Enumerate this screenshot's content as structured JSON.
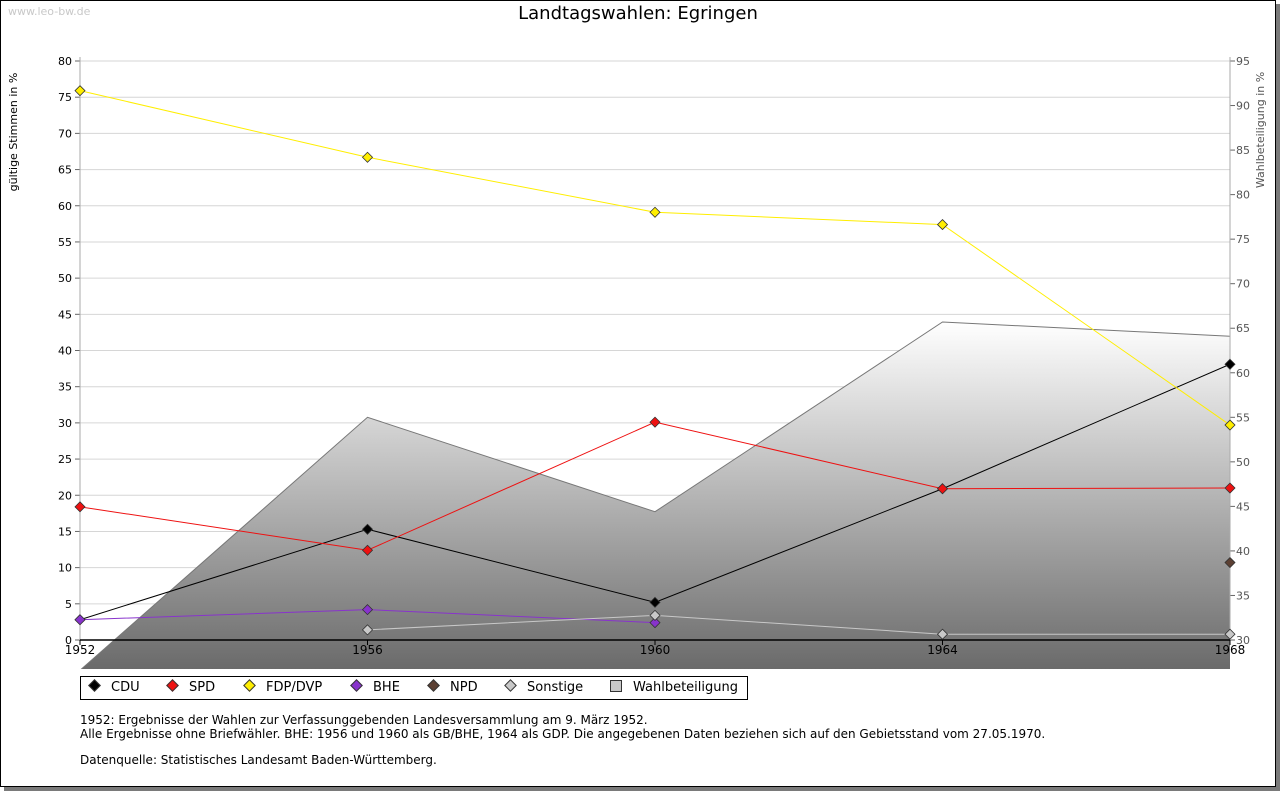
{
  "watermark": "www.leo-bw.de",
  "chart_data": {
    "type": "line",
    "title": "Landtagswahlen: Egringen",
    "ylabel": "gültige Stimmen in %",
    "y2label": "Wahlbeteiligung in %",
    "ylim": [
      0,
      80
    ],
    "y2lim": [
      30,
      95
    ],
    "yticks": [
      "0",
      "5",
      "10",
      "15",
      "20",
      "25",
      "30",
      "35",
      "40",
      "45",
      "50",
      "55",
      "60",
      "65",
      "70",
      "75",
      "80"
    ],
    "y2ticks": [
      "30",
      "35",
      "40",
      "45",
      "50",
      "55",
      "60",
      "65",
      "70",
      "75",
      "80",
      "85",
      "90",
      "95"
    ],
    "categories": [
      "1952",
      "1956",
      "1960",
      "1964",
      "1968"
    ],
    "series": [
      {
        "name": "CDU",
        "color": "#000000",
        "values": [
          2.8,
          15.3,
          5.2,
          20.9,
          38.1
        ]
      },
      {
        "name": "SPD",
        "color": "#ee1111",
        "values": [
          18.4,
          12.4,
          30.1,
          20.9,
          21.0
        ]
      },
      {
        "name": "FDP/DVP",
        "color": "#ffee00",
        "values": [
          75.9,
          66.7,
          59.1,
          57.4,
          29.7
        ]
      },
      {
        "name": "BHE",
        "color": "#8833cc",
        "values": [
          2.8,
          4.2,
          2.4,
          null,
          null
        ]
      },
      {
        "name": "NPD",
        "color": "#5c4033",
        "values": [
          null,
          null,
          null,
          null,
          10.7
        ]
      },
      {
        "name": "Sonstige",
        "color": "#c8c8c8",
        "values": [
          null,
          1.4,
          3.4,
          0.8,
          0.8
        ]
      }
    ],
    "turnout": {
      "name": "Wahlbeteiligung",
      "color": "#aaaaaa",
      "values": [
        26.6,
        55.0,
        44.4,
        65.7,
        64.1
      ]
    }
  },
  "notes": {
    "line1": "1952: Ergebnisse der Wahlen zur Verfassunggebenden Landesversammlung am 9. März 1952.",
    "line2": "Alle Ergebnisse ohne Briefwähler. BHE: 1956 und 1960 als GB/BHE, 1964 als GDP. Die angegebenen Daten beziehen sich auf den Gebietsstand vom 27.05.1970.",
    "source": "Datenquelle: Statistisches Landesamt Baden-Württemberg."
  }
}
